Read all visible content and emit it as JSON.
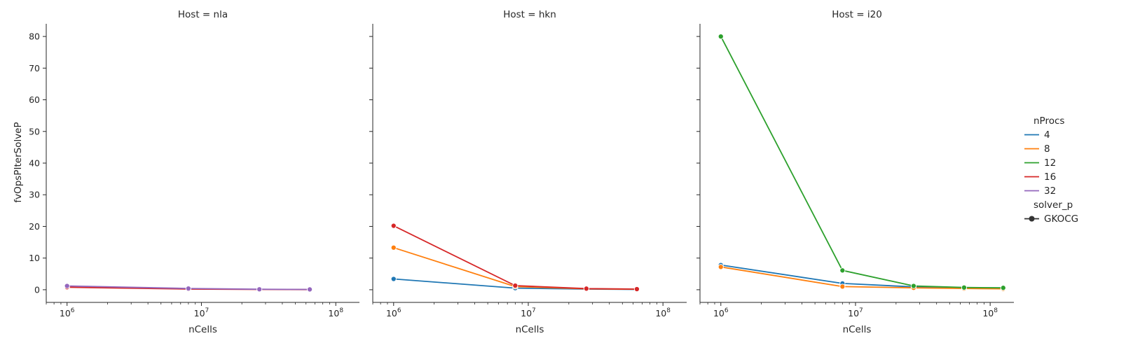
{
  "chart_data": {
    "type": "line",
    "xlabel": "nCells",
    "ylabel": "fvOpsPIterSolveP",
    "xscale": "log",
    "xlim": [
      700000,
      150000000
    ],
    "ylim": [
      -4,
      84
    ],
    "yticks": [
      0,
      10,
      20,
      30,
      40,
      50,
      60,
      70,
      80
    ],
    "xticks": [
      {
        "value": 1000000,
        "base": "10",
        "exp": "6"
      },
      {
        "value": 10000000,
        "base": "10",
        "exp": "7"
      },
      {
        "value": 100000000,
        "base": "10",
        "exp": "8"
      }
    ],
    "grid": false,
    "markers": true,
    "legend": {
      "placement": "right",
      "hue_title": "nProcs",
      "hue_entries": [
        {
          "label": "4",
          "color": "#1f77b4"
        },
        {
          "label": "8",
          "color": "#ff7f0e"
        },
        {
          "label": "12",
          "color": "#2ca02c"
        },
        {
          "label": "16",
          "color": "#d62728"
        },
        {
          "label": "32",
          "color": "#9467bd"
        }
      ],
      "style_title": "solver_p",
      "style_entries": [
        {
          "label": "GKOCG",
          "color": "#333333"
        }
      ]
    },
    "facets": [
      {
        "title": "Host = nla",
        "series": [
          {
            "nprocs": "16",
            "color": "#d62728",
            "points": [
              [
                1000000,
                0.8
              ],
              [
                8000000,
                0.2
              ],
              [
                27000000,
                0.1
              ],
              [
                64000000,
                0.05
              ]
            ]
          },
          {
            "nprocs": "32",
            "color": "#9467bd",
            "points": [
              [
                1000000,
                1.2
              ],
              [
                8000000,
                0.4
              ],
              [
                27000000,
                0.15
              ],
              [
                64000000,
                0.1
              ]
            ]
          }
        ]
      },
      {
        "title": "Host = hkn",
        "series": [
          {
            "nprocs": "4",
            "color": "#1f77b4",
            "points": [
              [
                1000000,
                3.4
              ],
              [
                8000000,
                0.5
              ],
              [
                27000000,
                0.2
              ],
              [
                64000000,
                0.1
              ]
            ]
          },
          {
            "nprocs": "8",
            "color": "#ff7f0e",
            "points": [
              [
                1000000,
                13.3
              ],
              [
                8000000,
                1.0
              ],
              [
                27000000,
                0.3
              ],
              [
                64000000,
                0.15
              ]
            ]
          },
          {
            "nprocs": "16",
            "color": "#d62728",
            "points": [
              [
                1000000,
                20.2
              ],
              [
                8000000,
                1.3
              ],
              [
                27000000,
                0.35
              ],
              [
                64000000,
                0.2
              ]
            ]
          }
        ]
      },
      {
        "title": "Host = i20",
        "series": [
          {
            "nprocs": "4",
            "color": "#1f77b4",
            "points": [
              [
                1000000,
                7.8
              ],
              [
                8000000,
                2.0
              ],
              [
                27000000,
                0.9
              ],
              [
                64000000,
                0.5
              ],
              [
                125000000,
                0.4
              ]
            ]
          },
          {
            "nprocs": "8",
            "color": "#ff7f0e",
            "points": [
              [
                1000000,
                7.2
              ],
              [
                8000000,
                1.0
              ],
              [
                27000000,
                0.6
              ],
              [
                64000000,
                0.4
              ],
              [
                125000000,
                0.3
              ]
            ]
          },
          {
            "nprocs": "12",
            "color": "#2ca02c",
            "points": [
              [
                1000000,
                80.0
              ],
              [
                8000000,
                6.1
              ],
              [
                27000000,
                1.2
              ],
              [
                64000000,
                0.7
              ],
              [
                125000000,
                0.6
              ]
            ]
          }
        ]
      }
    ]
  }
}
